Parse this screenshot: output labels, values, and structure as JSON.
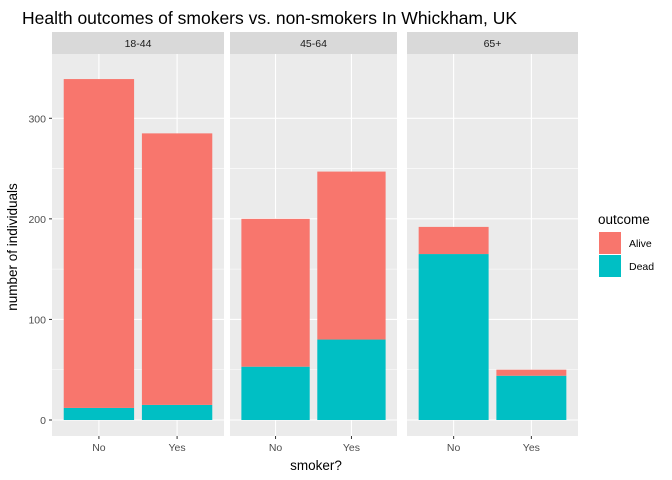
{
  "chart_data": {
    "type": "bar",
    "stacked": true,
    "title": "Health outcomes of smokers vs. non-smokers In Whickham, UK",
    "xlabel": "smoker?",
    "ylabel": "number of individuals",
    "ylim": [
      0,
      350
    ],
    "yticks": [
      0,
      100,
      200,
      300
    ],
    "categories": [
      "No",
      "Yes"
    ],
    "facets": [
      {
        "label": "18-44",
        "series": [
          {
            "name": "Alive",
            "values": [
              327,
              270
            ]
          },
          {
            "name": "Dead",
            "values": [
              12,
              15
            ]
          }
        ]
      },
      {
        "label": "45-64",
        "series": [
          {
            "name": "Alive",
            "values": [
              147,
              167
            ]
          },
          {
            "name": "Dead",
            "values": [
              53,
              80
            ]
          }
        ]
      },
      {
        "label": "65+",
        "series": [
          {
            "name": "Alive",
            "values": [
              27,
              6
            ]
          },
          {
            "name": "Dead",
            "values": [
              165,
              44
            ]
          }
        ]
      }
    ],
    "legend": {
      "title": "outcome",
      "placement": "right",
      "entries": [
        {
          "name": "Alive",
          "color": "#F8766D"
        },
        {
          "name": "Dead",
          "color": "#00BFC4"
        }
      ]
    },
    "colors": {
      "Alive": "#F8766D",
      "Dead": "#00BFC4"
    },
    "panel_background": "#EBEBEB",
    "strip_background": "#D9D9D9",
    "grid": true
  }
}
